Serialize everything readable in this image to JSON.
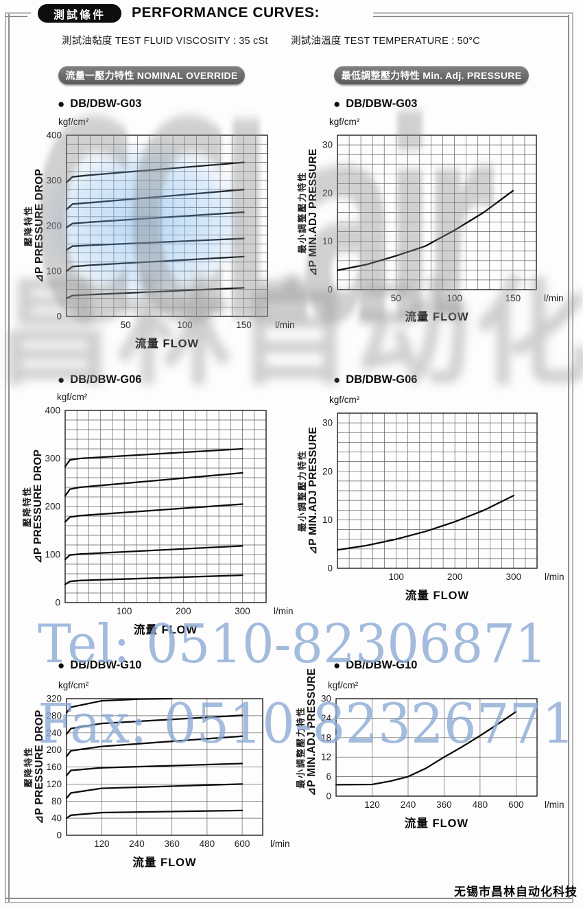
{
  "page": {
    "header_badge": "測試條件",
    "title": "PERFORMANCE CURVES:",
    "test_viscosity": "測試油黏度  TEST FLUID VISCOSITY : 35 cSt",
    "test_temperature": "測試油溫度  TEST TEMPERATURE : 50°C",
    "footer_company": "无锡市昌林自动化科技"
  },
  "column_badges": {
    "left": "流量一壓力特性 NOMINAL OVERRIDE",
    "right": "最低調整壓力特性 Min. Adj. PRESSURE"
  },
  "sections": [
    {
      "model": "DB/DBW-G03"
    },
    {
      "model": "DB/DBW-G06"
    },
    {
      "model": "DB/DBW-G10"
    }
  ],
  "watermarks": {
    "logo_text": "CCLair",
    "logo_cn": "昌林自动化",
    "tel": "Tel: 0510-82306871",
    "fax": "Fax: 0510-82326771",
    "blue_color": "#8caad4",
    "gray_color": "#8c8c8c"
  },
  "chart_data": [
    {
      "id": "g03-nominal-override",
      "type": "line",
      "model": "DB/DBW-G03",
      "title_cn": "壓降特性",
      "ylabel": "⊿P PRESSURE DROP",
      "unit": "kgf/cm²",
      "xlabel": "流量 FLOW",
      "x_unit": "l/min",
      "xlim": [
        0,
        170
      ],
      "ylim": [
        0,
        400
      ],
      "x_grid_step": 10,
      "y_grid_step": 20,
      "x_ticks": [
        50,
        100,
        150
      ],
      "y_ticks": [
        0,
        100,
        200,
        300,
        400
      ],
      "series": [
        {
          "points": [
            [
              0,
              296
            ],
            [
              5,
              308
            ],
            [
              20,
              312
            ],
            [
              150,
              340
            ]
          ]
        },
        {
          "points": [
            [
              0,
              236
            ],
            [
              5,
              248
            ],
            [
              20,
              251
            ],
            [
              150,
              280
            ]
          ]
        },
        {
          "points": [
            [
              0,
              196
            ],
            [
              5,
              205
            ],
            [
              20,
              208
            ],
            [
              150,
              230
            ]
          ]
        },
        {
          "points": [
            [
              0,
              147
            ],
            [
              5,
              155
            ],
            [
              20,
              157
            ],
            [
              150,
              172
            ]
          ]
        },
        {
          "points": [
            [
              0,
              100
            ],
            [
              5,
              110
            ],
            [
              20,
              113
            ],
            [
              150,
              132
            ]
          ]
        },
        {
          "points": [
            [
              0,
              40
            ],
            [
              5,
              46
            ],
            [
              20,
              48
            ],
            [
              150,
              63
            ]
          ]
        }
      ]
    },
    {
      "id": "g03-min-adj-pressure",
      "type": "line",
      "model": "DB/DBW-G03",
      "title_cn": "最小調整壓力特性",
      "ylabel": "⊿P MIN.ADJ PRESSURE",
      "unit": "kgf/cm²",
      "xlabel": "流量 FLOW",
      "x_unit": "l/min",
      "xlim": [
        0,
        170
      ],
      "ylim": [
        0,
        32
      ],
      "x_grid_step": 10,
      "y_grid_step": 2,
      "x_ticks": [
        50,
        100,
        150
      ],
      "y_ticks": [
        0,
        10,
        20,
        30
      ],
      "series": [
        {
          "points": [
            [
              0,
              4
            ],
            [
              25,
              5.2
            ],
            [
              50,
              7
            ],
            [
              75,
              9
            ],
            [
              100,
              12.3
            ],
            [
              125,
              16
            ],
            [
              150,
              20.5
            ]
          ]
        }
      ]
    },
    {
      "id": "g06-nominal-override",
      "type": "line",
      "model": "DB/DBW-G06",
      "title_cn": "壓降特性",
      "ylabel": "⊿P PRESSURE DROP",
      "unit": "kgf/cm²",
      "xlabel": "流量 FLOW",
      "x_unit": "l/min",
      "xlim": [
        0,
        340
      ],
      "ylim": [
        0,
        400
      ],
      "x_grid_step": 20,
      "y_grid_step": 20,
      "x_ticks": [
        100,
        200,
        300
      ],
      "y_ticks": [
        0,
        100,
        200,
        300,
        400
      ],
      "series": [
        {
          "points": [
            [
              0,
              283
            ],
            [
              8,
              297
            ],
            [
              25,
              300
            ],
            [
              300,
              320
            ]
          ]
        },
        {
          "points": [
            [
              0,
              222
            ],
            [
              8,
              236
            ],
            [
              25,
              240
            ],
            [
              300,
              270
            ]
          ]
        },
        {
          "points": [
            [
              0,
              168
            ],
            [
              8,
              178
            ],
            [
              25,
              181
            ],
            [
              300,
              205
            ]
          ]
        },
        {
          "points": [
            [
              0,
              90
            ],
            [
              8,
              99
            ],
            [
              25,
              101
            ],
            [
              300,
              118
            ]
          ]
        },
        {
          "points": [
            [
              0,
              38
            ],
            [
              8,
              44
            ],
            [
              25,
              46
            ],
            [
              300,
              57
            ]
          ]
        }
      ]
    },
    {
      "id": "g06-min-adj-pressure",
      "type": "line",
      "model": "DB/DBW-G06",
      "title_cn": "最小調整壓力特性",
      "ylabel": "⊿P MIN.ADJ PRESSURE",
      "unit": "kgf/cm²",
      "xlabel": "流量 FLOW",
      "x_unit": "l/min",
      "xlim": [
        0,
        340
      ],
      "ylim": [
        0,
        32
      ],
      "x_grid_step": 20,
      "y_grid_step": 2,
      "x_ticks": [
        100,
        200,
        300
      ],
      "y_ticks": [
        0,
        10,
        20,
        30
      ],
      "series": [
        {
          "points": [
            [
              0,
              3.8
            ],
            [
              50,
              4.7
            ],
            [
              100,
              6
            ],
            [
              150,
              7.6
            ],
            [
              200,
              9.6
            ],
            [
              250,
              12
            ],
            [
              300,
              15
            ]
          ]
        }
      ]
    },
    {
      "id": "g10-nominal-override",
      "type": "line",
      "model": "DB/DBW-G10",
      "title_cn": "壓降特性",
      "ylabel": "⊿P PRESSURE DROP",
      "unit": "kgf/cm²",
      "xlabel": "流量 FLOW",
      "x_unit": "l/min",
      "xlim": [
        0,
        670
      ],
      "ylim": [
        0,
        320
      ],
      "x_grid_step": 120,
      "y_grid_step": 40,
      "x_ticks": [
        120,
        240,
        360,
        480,
        600
      ],
      "y_ticks": [
        0,
        40,
        80,
        120,
        160,
        200,
        240,
        280,
        320
      ],
      "series": [
        {
          "points": [
            [
              0,
              287
            ],
            [
              15,
              300
            ],
            [
              120,
              315
            ],
            [
              250,
              319
            ],
            [
              360,
              320
            ]
          ]
        },
        {
          "points": [
            [
              0,
              237
            ],
            [
              15,
              250
            ],
            [
              120,
              262
            ],
            [
              600,
              281
            ]
          ]
        },
        {
          "points": [
            [
              0,
              185
            ],
            [
              15,
              198
            ],
            [
              120,
              208
            ],
            [
              600,
              232
            ]
          ]
        },
        {
          "points": [
            [
              0,
              140
            ],
            [
              15,
              152
            ],
            [
              120,
              158
            ],
            [
              600,
              168
            ]
          ]
        },
        {
          "points": [
            [
              0,
              87
            ],
            [
              15,
              99
            ],
            [
              120,
              110
            ],
            [
              600,
              120
            ]
          ]
        },
        {
          "points": [
            [
              0,
              40
            ],
            [
              15,
              47
            ],
            [
              120,
              53
            ],
            [
              600,
              58
            ]
          ]
        }
      ]
    },
    {
      "id": "g10-min-adj-pressure",
      "type": "line",
      "model": "DB/DBW-G10",
      "title_cn": "最小調整壓力特性",
      "ylabel": "⊿P MIN.ADJ PRESSURE",
      "unit": "kgf/cm²",
      "xlabel": "流量 FLOW",
      "x_unit": "l/min",
      "xlim": [
        0,
        670
      ],
      "ylim": [
        0,
        30
      ],
      "x_grid_step": 120,
      "y_grid_step": 6,
      "x_ticks": [
        120,
        240,
        360,
        480,
        600
      ],
      "y_ticks": [
        0,
        6,
        12,
        18,
        24,
        30
      ],
      "series": [
        {
          "points": [
            [
              0,
              3.5
            ],
            [
              120,
              3.6
            ],
            [
              180,
              4.6
            ],
            [
              240,
              6
            ],
            [
              300,
              8.6
            ],
            [
              360,
              12
            ],
            [
              420,
              15.2
            ],
            [
              480,
              18.6
            ],
            [
              540,
              22.2
            ],
            [
              600,
              26
            ]
          ]
        }
      ]
    }
  ]
}
